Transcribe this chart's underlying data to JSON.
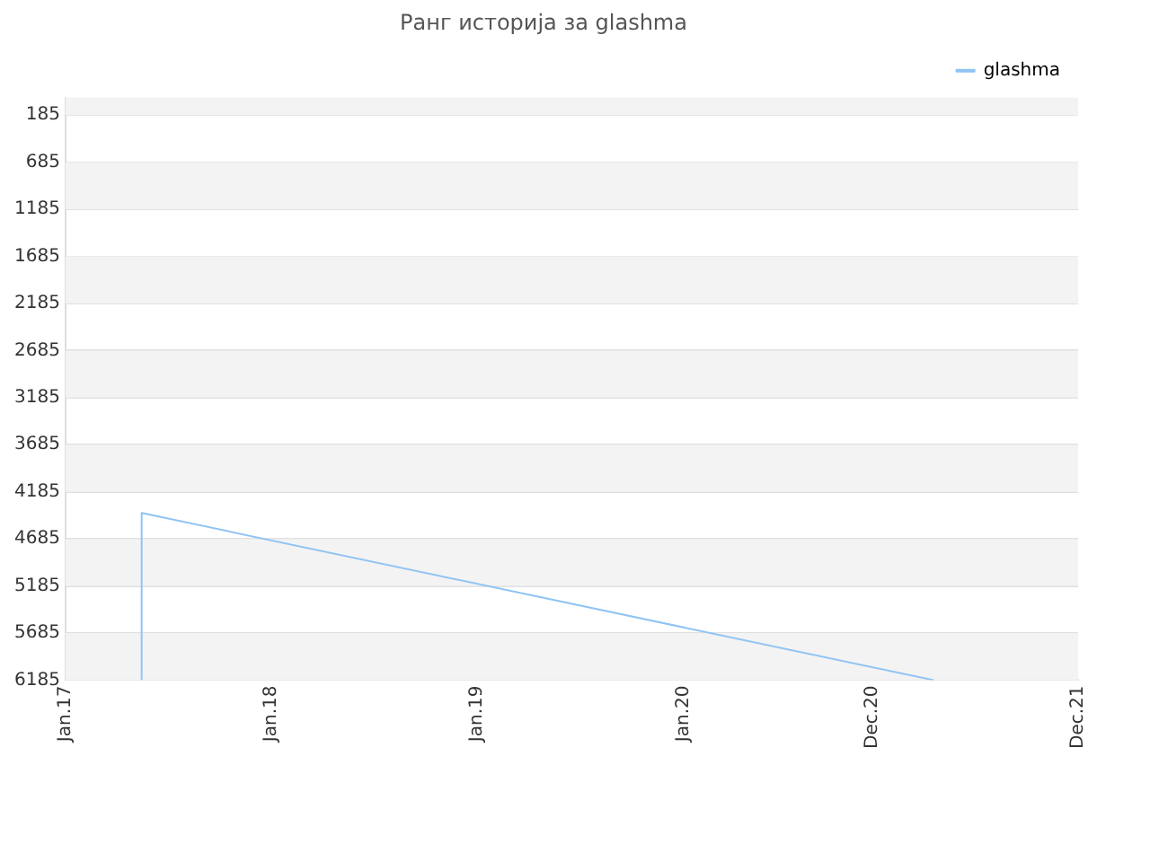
{
  "chart_data": {
    "type": "line",
    "title": "Ранг историја за glashma",
    "x": [
      "2017-05-16",
      "2017-05-16",
      "2021-03-20"
    ],
    "series": [
      {
        "name": "glashma",
        "color": "#90c4f4",
        "values": [
          6185,
          4410,
          6185
        ]
      }
    ],
    "xlim": [
      "2017-01-01",
      "2021-12-01"
    ],
    "xticks": [
      {
        "value": "2017-01-01",
        "label": "Jan.17"
      },
      {
        "value": "2018-01-01",
        "label": "Jan.18"
      },
      {
        "value": "2019-01-01",
        "label": "Jan.19"
      },
      {
        "value": "2020-01-01",
        "label": "Jan.20"
      },
      {
        "value": "2020-12-01",
        "label": "Dec.20"
      },
      {
        "value": "2021-12-01",
        "label": "Dec.21"
      }
    ],
    "ylim": [
      6185,
      0
    ],
    "yticks": [
      185,
      685,
      1185,
      1685,
      2185,
      2685,
      3185,
      3685,
      4185,
      4685,
      5185,
      5685,
      6185
    ],
    "grid": "y",
    "legend": "top right",
    "marker": "none",
    "line_style": "solid"
  }
}
